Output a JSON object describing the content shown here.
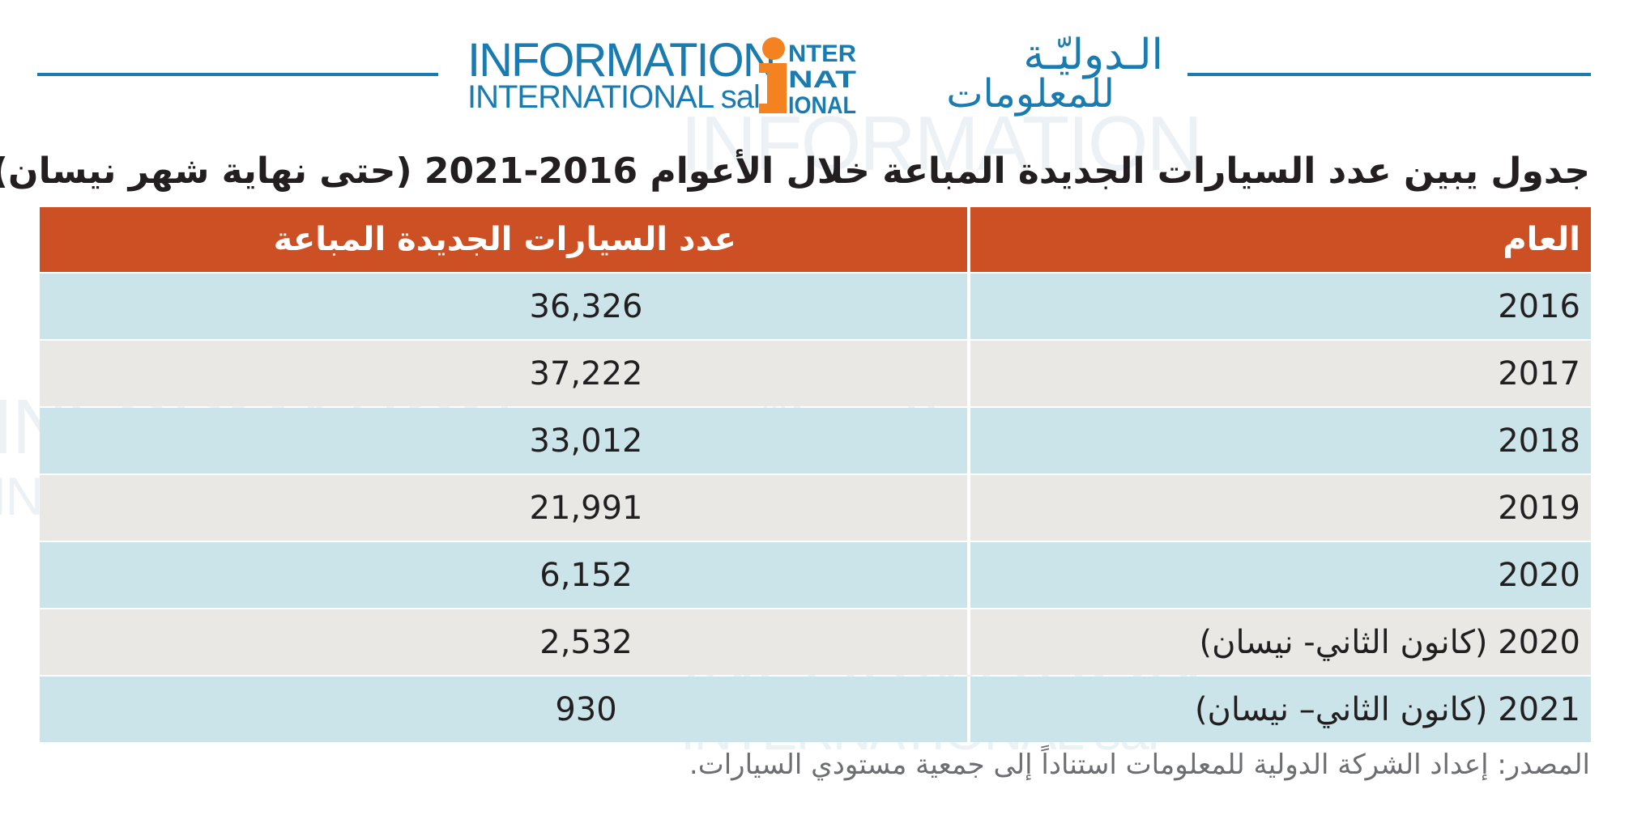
{
  "logo": {
    "english_line1": "INFORMATION",
    "english_line2": "INTERNATIONAL sal",
    "arabic_line1": "الـدوليّـة",
    "arabic_line2": "للمعلومات",
    "mark_letters": [
      "i",
      "NTER",
      "NAT",
      "IONAL"
    ],
    "colors": {
      "blue": "#1a7bb0",
      "orange": "#f58220"
    }
  },
  "title": "جدول يبين عدد السيارات الجديدة المباعة خلال الأعوام 2016-2021 (حتى نهاية شهر نيسان).",
  "table": {
    "header": {
      "year": "العام",
      "count": "عدد السيارات الجديدة المباعة"
    },
    "rows": [
      {
        "year": "2016",
        "count": "36,326"
      },
      {
        "year": "2017",
        "count": "37,222"
      },
      {
        "year": "2018",
        "count": "33,012"
      },
      {
        "year": "2019",
        "count": "21,991"
      },
      {
        "year": "2020",
        "count": "6,152"
      },
      {
        "year": "2020 (كانون الثاني- نيسان)",
        "count": "2,532"
      },
      {
        "year": "2021 (كانون الثاني– نيسان)",
        "count": "930"
      }
    ],
    "colors": {
      "header": "#cd4f24",
      "row_blue": "#cbe4ea",
      "row_grey": "#e9e8e4"
    }
  },
  "source": "المصدر: إعداد الشركة الدولية للمعلومات استناداً إلى جمعية مستودي السيارات."
}
